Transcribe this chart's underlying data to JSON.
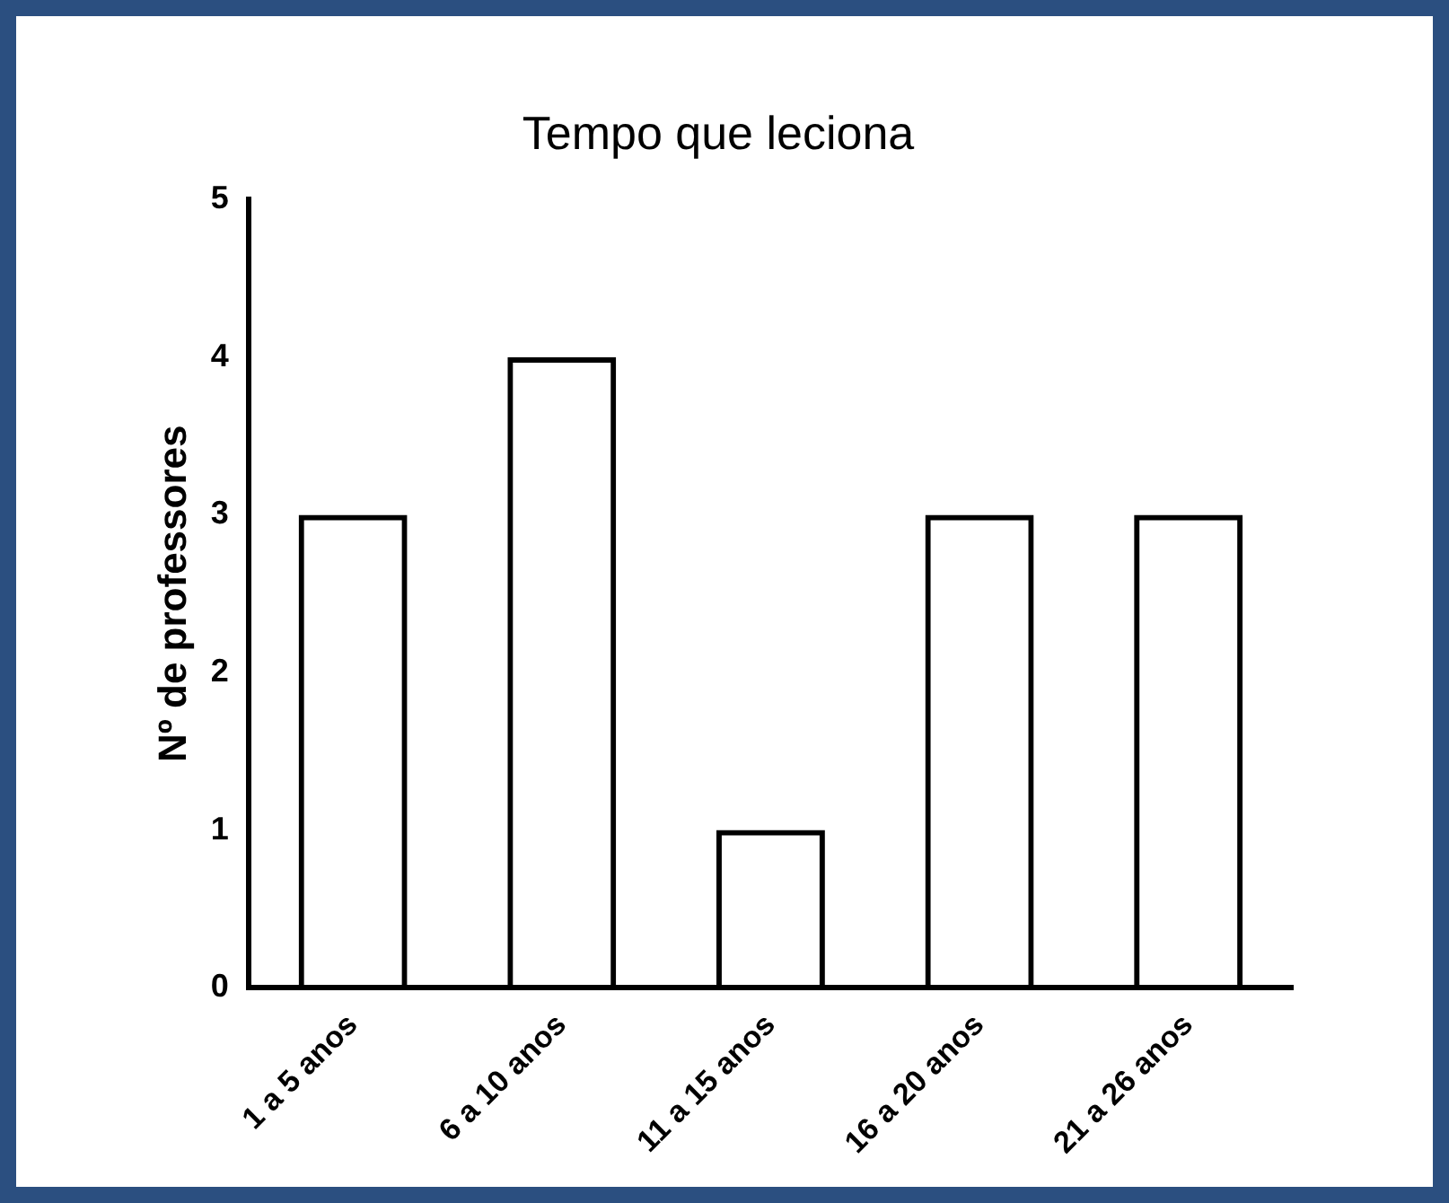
{
  "chart_data": {
    "type": "bar",
    "title": "Tempo que leciona",
    "ylabel": "Nº de professores",
    "categories": [
      "1 a 5 anos",
      "6 a 10 anos",
      "11 a 15 anos",
      "16 a 20 anos",
      "21 a 26 anos"
    ],
    "values": [
      3,
      4,
      1,
      3,
      3
    ],
    "color": "#000000",
    "ylim": [
      0,
      5
    ],
    "yticks": [
      0,
      1,
      2,
      3,
      4,
      5
    ],
    "grid": false,
    "legend": false
  }
}
